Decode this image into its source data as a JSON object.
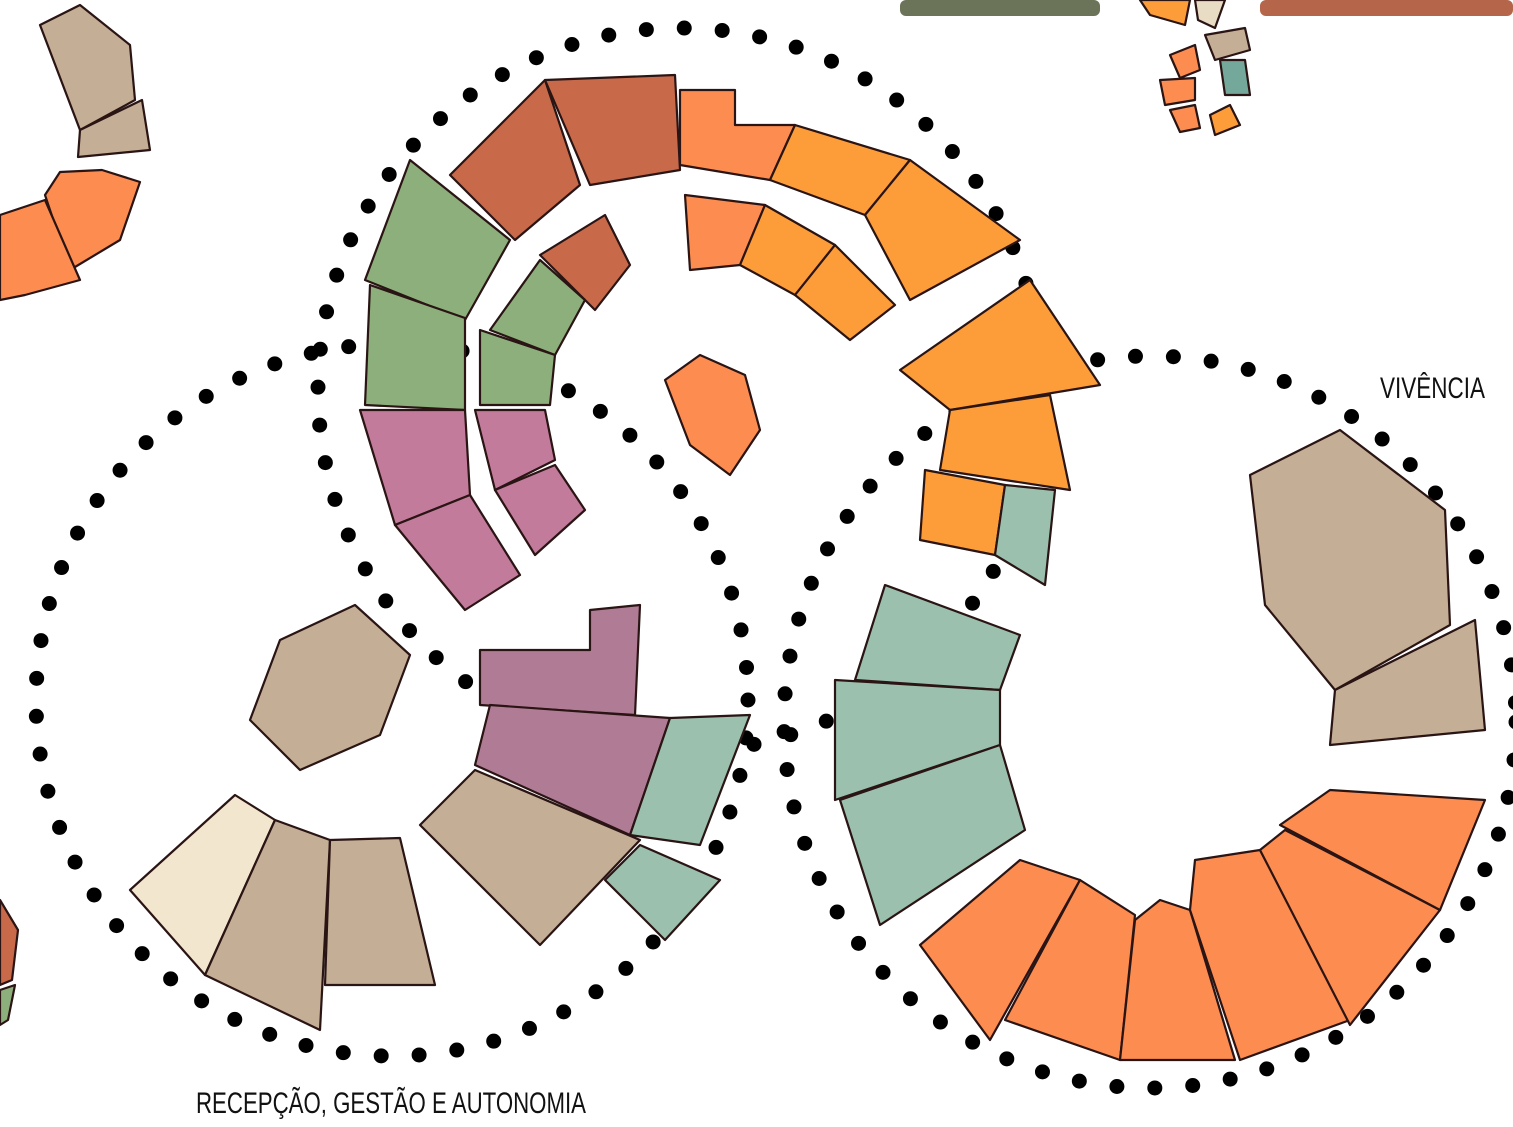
{
  "labels": {
    "vivencia": "VIVÊNCIA",
    "recepcao": "RECEPÇÃO, GESTÃO E AUTONOMIA"
  }
}
